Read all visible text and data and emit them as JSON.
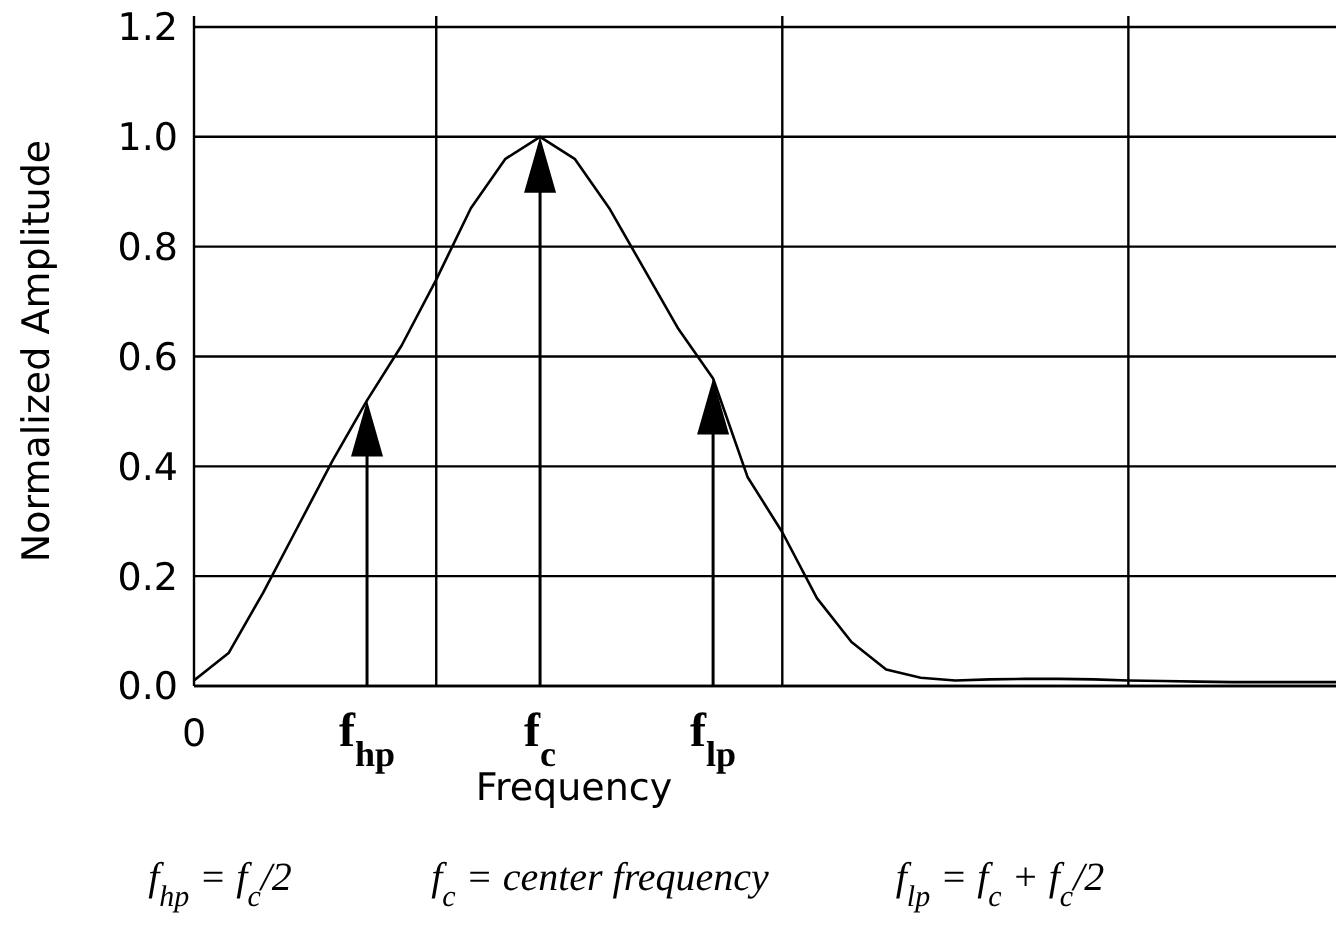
{
  "chart_data": {
    "type": "line",
    "xlabel": "Frequency",
    "ylabel": "Normalized Amplitude",
    "categories": [
      "0",
      null,
      null,
      null,
      null,
      "f$_{hp}$",
      null,
      null,
      null,
      null,
      "f$_{c}$",
      null,
      null,
      null,
      null,
      "f$_{lp}$",
      null,
      null,
      null,
      null,
      null,
      null,
      null,
      null,
      null,
      null,
      null,
      null,
      null,
      null,
      null,
      null,
      null,
      null
    ],
    "series": [
      {
        "color": "#000000",
        "values": [
          0.01,
          0.06,
          0.17,
          0.29,
          0.41,
          0.52,
          0.62,
          0.74,
          0.87,
          0.96,
          1.0,
          0.96,
          0.87,
          0.76,
          0.65,
          0.56,
          0.38,
          0.28,
          0.16,
          0.08,
          0.03,
          0.015,
          0.01,
          0.012,
          0.013,
          0.013,
          0.012,
          0.01,
          0.009,
          0.008,
          0.007,
          0.007,
          0.007,
          0.007
        ]
      }
    ],
    "ylim": [
      0,
      1.22
    ],
    "yticks": [
      {
        "value": 0,
        "label": "0.0"
      },
      {
        "value": 0.2,
        "label": "0.2"
      },
      {
        "value": 0.4,
        "label": "0.4"
      },
      {
        "value": 0.6,
        "label": "0.6"
      },
      {
        "value": 0.8,
        "label": "0.8"
      },
      {
        "value": 1.0,
        "label": "1.0"
      },
      {
        "value": 1.2,
        "label": "1.2"
      }
    ],
    "grid": true,
    "marker": "none",
    "line_style": "solid",
    "annotations": [
      "f$_{hp}$ = f$_{c}$/2",
      "f$_{c}$ = center frequency",
      "f$_{lp}$ = f$_{c}$ + f$_{c}$/2"
    ]
  }
}
